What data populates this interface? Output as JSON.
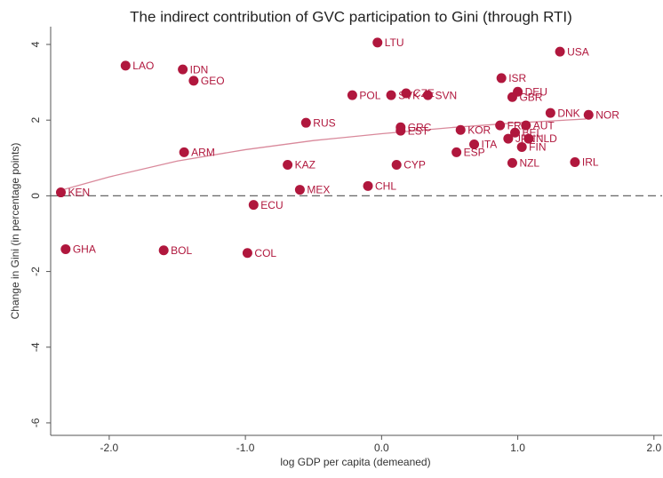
{
  "chart_data": {
    "type": "scatter",
    "title": "The indirect contribution of GVC participation to Gini (through RTI)",
    "x_label": "log GDP per capita (demeaned)",
    "y_label": "Change in Gini (in percentage points)",
    "color": "#b0173d",
    "fit_color": "#d9899b",
    "hline": 0,
    "labels": [
      "KEN",
      "GHA",
      "LAO",
      "IDN",
      "GEO",
      "ARM",
      "BOL",
      "ECU",
      "COL",
      "KAZ",
      "MEX",
      "RUS",
      "POL",
      "CHL",
      "LTU",
      "SVK",
      "CZE",
      "SVN",
      "GRC",
      "EST",
      "CYP",
      "KOR",
      "ITA",
      "ESP",
      "ISR",
      "DEU",
      "GBR",
      "USA",
      "FRA",
      "AUT",
      "BEL",
      "JPN",
      "NLD",
      "FIN",
      "NZL",
      "DNK",
      "NOR",
      "IRL"
    ],
    "x": [
      -2.355,
      -2.32,
      -1.88,
      -1.46,
      -1.38,
      -1.45,
      -1.6,
      -0.94,
      -0.985,
      -0.69,
      -0.6,
      -0.555,
      -0.215,
      -0.1,
      -0.03,
      0.07,
      0.18,
      0.34,
      0.14,
      0.14,
      0.11,
      0.58,
      0.68,
      0.55,
      0.88,
      1.0,
      0.96,
      1.31,
      0.87,
      1.06,
      0.98,
      0.93,
      1.08,
      1.03,
      0.96,
      1.24,
      1.52,
      1.42
    ],
    "values": [
      0.09,
      -1.41,
      3.44,
      3.34,
      3.04,
      1.15,
      -1.44,
      -0.24,
      -1.51,
      0.82,
      0.16,
      1.93,
      2.66,
      0.26,
      4.05,
      2.66,
      2.71,
      2.66,
      1.81,
      1.72,
      0.82,
      1.74,
      1.36,
      1.15,
      3.11,
      2.75,
      2.61,
      3.81,
      1.86,
      1.86,
      1.67,
      1.51,
      1.51,
      1.29,
      0.87,
      2.19,
      2.14,
      0.89
    ],
    "fit": {
      "x": [
        -2.38,
        -2.0,
        -1.5,
        -1.0,
        -0.5,
        0.0,
        0.5,
        1.0,
        1.5
      ],
      "y": [
        0.12,
        0.5,
        0.92,
        1.22,
        1.46,
        1.64,
        1.8,
        1.93,
        2.03
      ]
    },
    "xlim": [
      -2.43,
      2.06
    ],
    "ylim": [
      -6.33,
      4.47
    ],
    "xticks": [
      {
        "value": -2,
        "label": "-2.0"
      },
      {
        "value": -1,
        "label": "-1.0"
      },
      {
        "value": 0,
        "label": "0.0"
      },
      {
        "value": 1,
        "label": "1.0"
      },
      {
        "value": 2,
        "label": "2.0"
      }
    ],
    "yticks": [
      4,
      2,
      0,
      -2,
      -4,
      -6
    ]
  }
}
